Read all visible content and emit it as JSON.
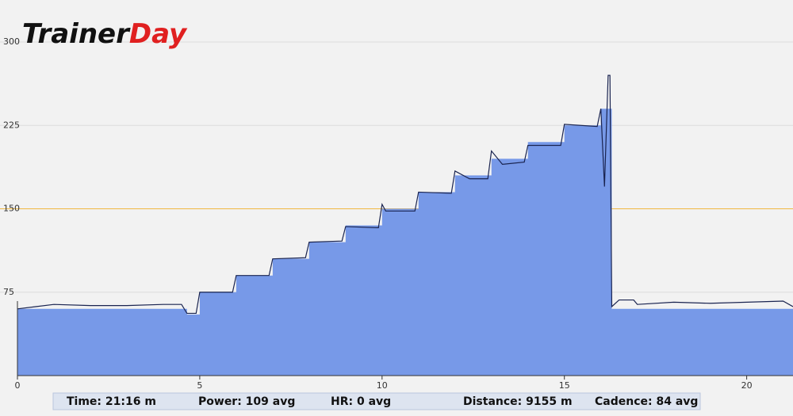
{
  "logo": "TrainerDay",
  "chart_data": {
    "type": "area-line",
    "xlim": [
      0,
      21.27
    ],
    "xticks": [
      0,
      5,
      10,
      15,
      20
    ],
    "ylim": [
      0,
      300
    ],
    "yticks": [
      75,
      150,
      225,
      300
    ],
    "grid": true,
    "threshold": 150,
    "threshold_color": "#f0b840",
    "series": [
      {
        "kind": "area",
        "color": "#7799e8",
        "x": [
          0,
          4.65,
          4.65,
          5,
          5,
          6,
          6,
          7,
          7,
          8,
          8,
          9,
          9,
          10,
          10,
          11,
          11,
          12,
          12,
          13,
          13,
          14,
          14,
          15,
          15,
          16,
          16,
          16.3,
          16.3,
          21.27
        ],
        "values": [
          60,
          60,
          55,
          55,
          75,
          75,
          90,
          90,
          105,
          105,
          120,
          120,
          135,
          135,
          150,
          150,
          165,
          165,
          180,
          180,
          195,
          195,
          210,
          210,
          225,
          225,
          240,
          240,
          60,
          60
        ]
      },
      {
        "kind": "line",
        "color": "#1a2450",
        "x": [
          0,
          0.5,
          1,
          2,
          3,
          4,
          4.5,
          4.65,
          4.9,
          5.0,
          5.9,
          6.0,
          6.9,
          7.0,
          7.9,
          8.0,
          8.9,
          9.0,
          9.9,
          10.0,
          10.1,
          10.9,
          11.0,
          11.9,
          12.0,
          12.4,
          12.9,
          13.0,
          13.3,
          13.9,
          14.0,
          14.9,
          15.0,
          15.9,
          16.0,
          16.1,
          16.2,
          16.25,
          16.3,
          16.5,
          16.9,
          17.0,
          18,
          19,
          20,
          21,
          21.27
        ],
        "values": [
          60,
          62,
          64,
          63,
          63,
          64,
          64,
          56,
          56,
          75,
          75,
          90,
          90,
          105,
          106,
          120,
          121,
          134,
          133,
          154,
          148,
          148,
          165,
          164,
          184,
          177,
          177,
          202,
          190,
          192,
          207,
          207,
          226,
          224,
          240,
          170,
          270,
          270,
          62,
          68,
          68,
          64,
          66,
          65,
          66,
          67,
          62
        ]
      }
    ]
  },
  "footer": [
    "Time: 21:16 m",
    "Power: 109 avg",
    "HR: 0 avg",
    "Distance: 9155 m",
    "Cadence: 84 avg"
  ]
}
